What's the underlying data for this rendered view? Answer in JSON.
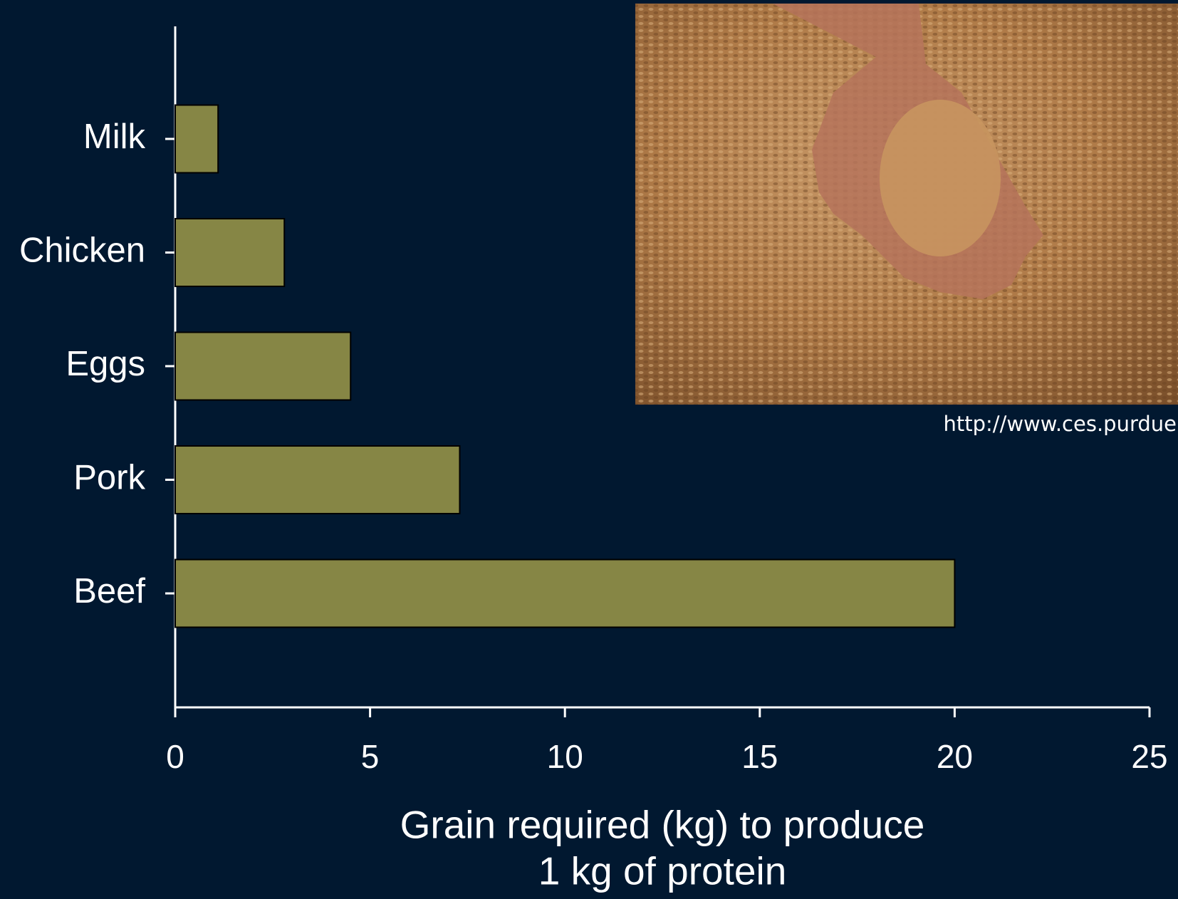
{
  "chart_data": {
    "type": "barh",
    "categories": [
      "Milk",
      "Chicken",
      "Eggs",
      "Pork",
      "Beef"
    ],
    "values": [
      1.1,
      2.8,
      4.5,
      7.3,
      20
    ],
    "color": "#868645",
    "xlim": [
      0,
      25
    ],
    "xticks": [
      0,
      5,
      10,
      15,
      20,
      25
    ],
    "xlabel": [
      "Grain required (kg) to produce",
      "1 kg of protein"
    ],
    "source": "http://www.ces.purdue"
  }
}
